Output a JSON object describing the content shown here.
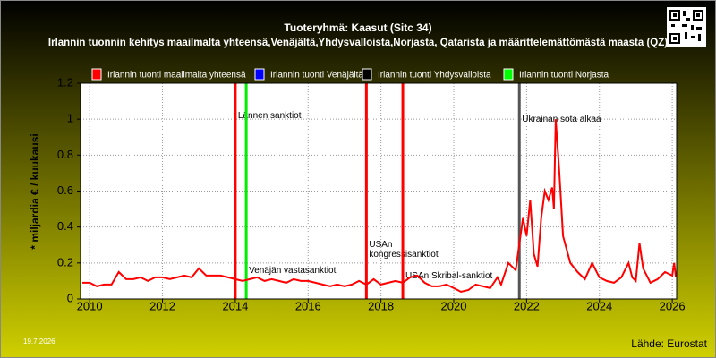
{
  "chart_data": {
    "type": "line",
    "title": "Tuoteryhmä: Kaasut (Sitc 34)",
    "subtitle": "Irlannin tuonnin kehitys maailmalta yhteensä,Venäjältä,Yhdysvalloista,Norjasta, Qatarista ja määrittelemättömästä maasta (QZ)",
    "ylabel": "* miljardia € / kuukausi",
    "date": "19.7.2026",
    "source": "Lähde: Eurostat",
    "xlim": [
      2009.75,
      2026.12
    ],
    "xticks": [
      2010,
      2012,
      2014,
      2016,
      2018,
      2020,
      2022,
      2024,
      2026
    ],
    "ylim": [
      0,
      1.2
    ],
    "yticks": [
      0,
      0.2,
      0.4,
      0.6,
      0.8,
      1,
      1.2
    ],
    "grid": true,
    "x": [
      2009.8,
      2010,
      2010.2,
      2010.4,
      2010.6,
      2010.8,
      2011,
      2011.2,
      2011.4,
      2011.6,
      2011.8,
      2012,
      2012.2,
      2012.4,
      2012.6,
      2012.8,
      2013,
      2013.2,
      2013.4,
      2013.6,
      2013.8,
      2014,
      2014.2,
      2014.4,
      2014.6,
      2014.8,
      2015,
      2015.2,
      2015.4,
      2015.6,
      2015.8,
      2016,
      2016.2,
      2016.4,
      2016.6,
      2016.8,
      2017,
      2017.2,
      2017.4,
      2017.6,
      2017.8,
      2018,
      2018.2,
      2018.4,
      2018.6,
      2018.8,
      2019,
      2019.2,
      2019.4,
      2019.6,
      2019.8,
      2020,
      2020.2,
      2020.4,
      2020.6,
      2020.8,
      2021,
      2021.2,
      2021.3,
      2021.5,
      2021.7,
      2021.9,
      2022,
      2022.1,
      2022.2,
      2022.3,
      2022.4,
      2022.5,
      2022.6,
      2022.7,
      2022.75,
      2022.8,
      2022.9,
      2023,
      2023.2,
      2023.4,
      2023.6,
      2023.8,
      2024,
      2024.2,
      2024.4,
      2024.6,
      2024.8,
      2024.9,
      2025,
      2025.1,
      2025.2,
      2025.4,
      2025.6,
      2025.8,
      2026,
      2026.05,
      2026.1
    ],
    "series": [
      {
        "name": "Irlannin tuonti maailmalta yhteensä",
        "color": "#ff0000",
        "values": [
          0.09,
          0.09,
          0.07,
          0.08,
          0.08,
          0.15,
          0.11,
          0.11,
          0.12,
          0.1,
          0.12,
          0.12,
          0.11,
          0.12,
          0.13,
          0.12,
          0.17,
          0.13,
          0.13,
          0.13,
          0.12,
          0.11,
          0.1,
          0.11,
          0.12,
          0.1,
          0.11,
          0.1,
          0.09,
          0.11,
          0.1,
          0.1,
          0.09,
          0.08,
          0.07,
          0.08,
          0.07,
          0.08,
          0.1,
          0.08,
          0.11,
          0.08,
          0.09,
          0.1,
          0.09,
          0.12,
          0.13,
          0.09,
          0.07,
          0.07,
          0.08,
          0.06,
          0.04,
          0.05,
          0.08,
          0.07,
          0.06,
          0.12,
          0.08,
          0.2,
          0.16,
          0.45,
          0.35,
          0.55,
          0.25,
          0.18,
          0.45,
          0.6,
          0.55,
          0.62,
          0.5,
          1.0,
          0.7,
          0.35,
          0.2,
          0.15,
          0.11,
          0.2,
          0.12,
          0.1,
          0.09,
          0.12,
          0.2,
          0.12,
          0.1,
          0.31,
          0.17,
          0.09,
          0.11,
          0.15,
          0.13,
          0.2,
          0.12
        ]
      },
      {
        "name": "Irlannin tuonti Venäjältä",
        "color": "#0000ff"
      },
      {
        "name": "Irlannin tuonti Yhdysvalloista",
        "color": "#000000"
      },
      {
        "name": "Irlannin tuonti Norjasta",
        "color": "#00ff00"
      }
    ],
    "events": [
      {
        "x": 2014.0,
        "color": "#ff0000",
        "label": "Lännen sanktiot",
        "label_y": 1.02
      },
      {
        "x": 2014.3,
        "color": "#00ee00",
        "label": "Venäjän vastasanktiot",
        "label_y": 0.16
      },
      {
        "x": 2017.6,
        "color": "#ff0000",
        "label": "USAn kongressisanktiot",
        "label_y": 0.25
      },
      {
        "x": 2018.6,
        "color": "#ff0000",
        "label": "USAn Skribal-sanktiot",
        "label_y": 0.13
      },
      {
        "x": 2021.8,
        "color": "#555555",
        "label": "Ukrainan sota alkaa",
        "label_y": 1.0
      }
    ]
  }
}
